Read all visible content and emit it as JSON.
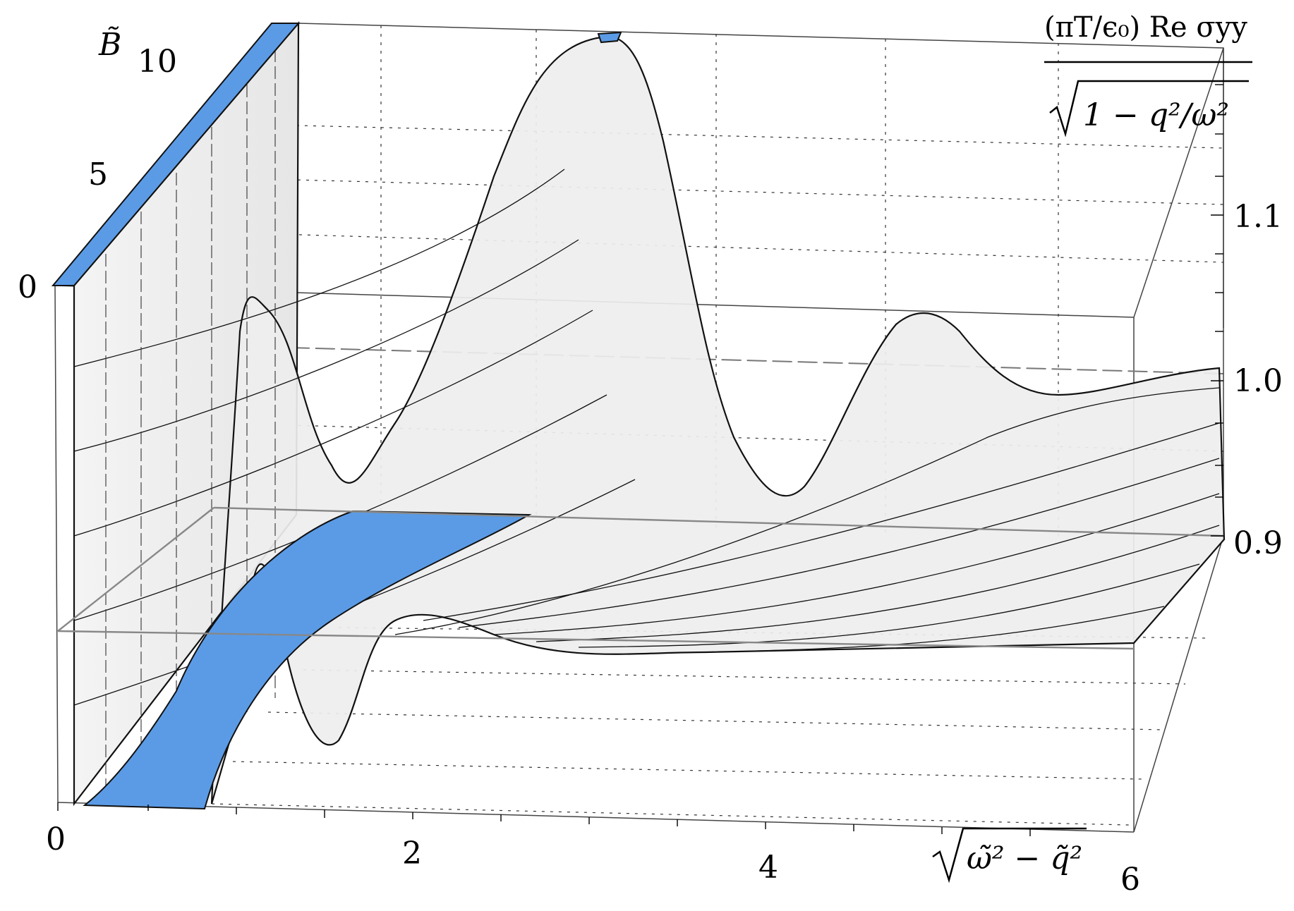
{
  "chart_data": {
    "type": "surface3d",
    "x_axis": {
      "label_radicand": "ω̃² − q̃²",
      "ticks": [
        "0",
        "2",
        "4",
        "6"
      ],
      "range": [
        0,
        6
      ]
    },
    "y_axis": {
      "label": "B̃",
      "ticks": [
        "0",
        "5",
        "10"
      ],
      "range": [
        0,
        10
      ]
    },
    "z_axis": {
      "label_numerator": "(πT/ϵ₀) Re σyy",
      "label_denominator": "1 − q²/ω²",
      "ticks": [
        "0.9",
        "1.0",
        "1.1"
      ],
      "range": [
        0.9,
        1.15
      ]
    },
    "reference_level": 1.0,
    "surface_color": "#f0f0f0",
    "cutoff_region_color": "#5b9be6",
    "grid": true,
    "boxed": true,
    "note": "Surface shows oscillating ridges in x with peak height growing with B; cutoff region shaded blue near x≈0.4–0.8."
  }
}
